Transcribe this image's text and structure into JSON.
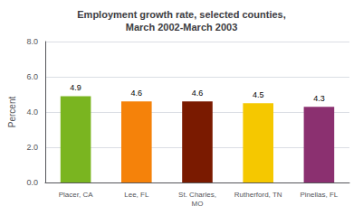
{
  "chart_data": {
    "type": "bar",
    "title": "Employment growth rate, selected counties,\nMarch 2002-March 2003",
    "categories": [
      "Placer, CA",
      "Lee, FL",
      "St. Charles,\nMO",
      "Rutherford, TN",
      "Pinellas, FL"
    ],
    "values": [
      4.9,
      4.6,
      4.6,
      4.5,
      4.3
    ],
    "colors": [
      "#7ab520",
      "#f5820a",
      "#7a1a00",
      "#f5c800",
      "#8b3070"
    ],
    "ylabel": "Percent",
    "ylim": [
      0,
      8.0
    ],
    "yticks": [
      {
        "value": 0.0,
        "label": "0.0"
      },
      {
        "value": 2.0,
        "label": "2.0"
      },
      {
        "value": 4.0,
        "label": "4.0"
      },
      {
        "value": 6.0,
        "label": "6.0"
      },
      {
        "value": 8.0,
        "label": "8.0"
      }
    ],
    "grid": true,
    "data_labels": true
  }
}
